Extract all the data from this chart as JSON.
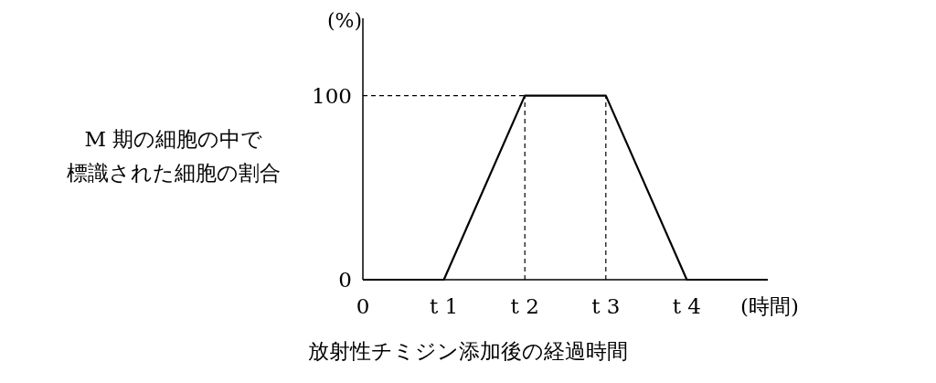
{
  "chart_data": {
    "type": "line",
    "ylabel": "M 期の細胞の中で標識された細胞の割合",
    "xlabel": "放射性チミジン添加後の経過時間",
    "annotations": [
      "(%)"
    ],
    "categories": [
      "0",
      "t 1",
      "t 2",
      "t 3",
      "t 4",
      "(時間)"
    ],
    "series": [
      {
        "color": "#000000",
        "values": [
          0,
          0,
          100,
          100,
          0,
          0
        ]
      }
    ],
    "ylim": [
      0,
      142
    ],
    "yticks": [
      0,
      100
    ],
    "ref_lines": [
      {
        "axis": "y",
        "value": 100,
        "line_style": "dashed",
        "color": "#000000"
      },
      {
        "axis": "x",
        "value": "t 2",
        "line_style": "dashed",
        "color": "#000000"
      },
      {
        "axis": "x",
        "value": "t 3",
        "line_style": "dashed",
        "color": "#000000"
      }
    ],
    "grid": false,
    "marker": "none",
    "line_style": "solid"
  }
}
